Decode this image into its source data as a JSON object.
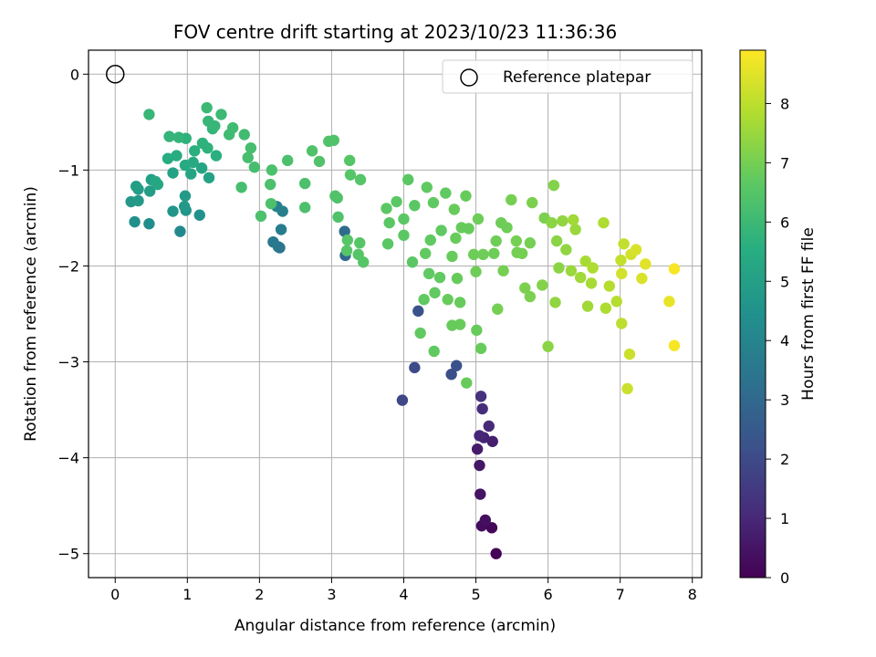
{
  "chart_data": {
    "type": "scatter",
    "title": "FOV centre drift starting at 2023/10/23 11:36:36",
    "xlabel": "Angular distance from reference (arcmin)",
    "ylabel": "Rotation from reference (arcmin)",
    "xlim": [
      -0.37,
      8.13
    ],
    "ylim": [
      -5.25,
      0.25
    ],
    "xticks": [
      0,
      1,
      2,
      3,
      4,
      5,
      6,
      7,
      8
    ],
    "yticks": [
      0,
      -1,
      -2,
      -3,
      -4,
      -5
    ],
    "xtick_labels": [
      "0",
      "1",
      "2",
      "3",
      "4",
      "5",
      "6",
      "7",
      "8"
    ],
    "ytick_labels": [
      "0",
      "−1",
      "−2",
      "−3",
      "−4",
      "−5"
    ],
    "grid": true,
    "legend": {
      "position": "top-right",
      "label": "Reference platepar"
    },
    "reference_point": {
      "x": 0,
      "y": 0
    },
    "colorbar": {
      "label": "Hours from first FF file",
      "colormap": "viridis",
      "range": [
        0,
        8.9
      ],
      "ticks": [
        0,
        1,
        2,
        3,
        4,
        5,
        6,
        7,
        8
      ],
      "tick_labels": [
        "0",
        "1",
        "2",
        "3",
        "4",
        "5",
        "6",
        "7",
        "8"
      ]
    },
    "points": [
      [
        5.28,
        -5.0,
        0.05
      ],
      [
        5.22,
        -4.73,
        0.15
      ],
      [
        5.08,
        -4.71,
        0.25
      ],
      [
        5.13,
        -4.65,
        0.35
      ],
      [
        5.06,
        -4.38,
        0.45
      ],
      [
        5.05,
        -4.08,
        0.55
      ],
      [
        5.02,
        -3.91,
        0.65
      ],
      [
        5.23,
        -3.83,
        0.75
      ],
      [
        5.11,
        -3.79,
        0.85
      ],
      [
        5.05,
        -3.77,
        0.95
      ],
      [
        5.18,
        -3.67,
        1.05
      ],
      [
        5.09,
        -3.49,
        1.15
      ],
      [
        5.07,
        -3.36,
        1.25
      ],
      [
        3.98,
        -3.4,
        1.9
      ],
      [
        4.15,
        -3.06,
        2.0
      ],
      [
        4.66,
        -3.13,
        2.1
      ],
      [
        4.73,
        -3.04,
        2.2
      ],
      [
        4.2,
        -2.47,
        2.3
      ],
      [
        3.19,
        -1.89,
        3.0
      ],
      [
        3.18,
        -1.64,
        3.1
      ],
      [
        2.28,
        -1.81,
        3.4
      ],
      [
        2.26,
        -1.8,
        3.5
      ],
      [
        2.19,
        -1.75,
        3.6
      ],
      [
        2.3,
        -1.62,
        3.7
      ],
      [
        2.32,
        -1.43,
        3.8
      ],
      [
        2.24,
        -1.38,
        3.9
      ],
      [
        0.9,
        -1.64,
        4.2
      ],
      [
        0.47,
        -1.56,
        4.3
      ],
      [
        0.27,
        -1.54,
        4.4
      ],
      [
        1.17,
        -1.47,
        4.5
      ],
      [
        0.8,
        -1.43,
        4.6
      ],
      [
        0.98,
        -1.42,
        4.6
      ],
      [
        0.96,
        -1.38,
        4.7
      ],
      [
        0.22,
        -1.33,
        4.7
      ],
      [
        0.32,
        -1.32,
        4.8
      ],
      [
        0.97,
        -1.27,
        4.8
      ],
      [
        0.32,
        -1.2,
        4.9
      ],
      [
        0.48,
        -1.22,
        4.9
      ],
      [
        0.29,
        -1.17,
        5.0
      ],
      [
        0.5,
        -1.1,
        5.0
      ],
      [
        1.3,
        -1.08,
        5.1
      ],
      [
        0.8,
        -1.03,
        5.1
      ],
      [
        1.05,
        -1.04,
        5.2
      ],
      [
        1.2,
        -0.98,
        5.2
      ],
      [
        0.56,
        -1.12,
        5.3
      ],
      [
        0.59,
        -1.15,
        5.3
      ],
      [
        0.97,
        -0.95,
        5.4
      ],
      [
        1.08,
        -0.92,
        5.4
      ],
      [
        0.73,
        -0.88,
        5.5
      ],
      [
        0.85,
        -0.85,
        5.5
      ],
      [
        1.4,
        -0.85,
        5.6
      ],
      [
        1.1,
        -0.8,
        5.6
      ],
      [
        1.28,
        -0.77,
        5.7
      ],
      [
        1.21,
        -0.72,
        5.7
      ],
      [
        0.98,
        -0.67,
        5.7
      ],
      [
        0.88,
        -0.66,
        5.8
      ],
      [
        0.75,
        -0.65,
        5.8
      ],
      [
        1.35,
        -0.57,
        5.8
      ],
      [
        0.47,
        -0.42,
        5.9
      ],
      [
        1.29,
        -0.49,
        5.9
      ],
      [
        1.38,
        -0.54,
        5.9
      ],
      [
        1.27,
        -0.35,
        6.0
      ],
      [
        1.47,
        -0.42,
        6.0
      ],
      [
        1.58,
        -0.63,
        6.1
      ],
      [
        1.63,
        -0.56,
        6.1
      ],
      [
        1.79,
        -0.63,
        6.1
      ],
      [
        1.88,
        -0.77,
        6.2
      ],
      [
        1.84,
        -0.87,
        6.2
      ],
      [
        1.93,
        -0.97,
        6.2
      ],
      [
        1.75,
        -1.18,
        6.2
      ],
      [
        2.17,
        -1.0,
        6.3
      ],
      [
        2.39,
        -0.9,
        6.3
      ],
      [
        2.15,
        -1.15,
        6.3
      ],
      [
        2.16,
        -1.35,
        6.3
      ],
      [
        2.02,
        -1.48,
        6.3
      ],
      [
        2.63,
        -1.14,
        6.3
      ],
      [
        2.63,
        -1.39,
        6.3
      ],
      [
        2.73,
        -0.8,
        6.4
      ],
      [
        2.83,
        -0.91,
        6.4
      ],
      [
        2.96,
        -0.7,
        6.4
      ],
      [
        3.03,
        -0.69,
        6.4
      ],
      [
        3.05,
        -1.27,
        6.4
      ],
      [
        3.08,
        -1.29,
        6.4
      ],
      [
        3.09,
        -1.49,
        6.4
      ],
      [
        3.25,
        -0.9,
        6.5
      ],
      [
        3.26,
        -1.05,
        6.5
      ],
      [
        3.4,
        -1.1,
        6.5
      ],
      [
        3.22,
        -1.73,
        6.5
      ],
      [
        3.21,
        -1.84,
        6.5
      ],
      [
        3.39,
        -1.76,
        6.5
      ],
      [
        3.44,
        -1.96,
        6.5
      ],
      [
        3.37,
        -1.88,
        6.5
      ],
      [
        3.76,
        -1.4,
        6.6
      ],
      [
        3.8,
        -1.55,
        6.6
      ],
      [
        3.9,
        -1.33,
        6.6
      ],
      [
        4.0,
        -1.51,
        6.6
      ],
      [
        4.06,
        -1.1,
        6.6
      ],
      [
        4.15,
        -1.37,
        6.6
      ],
      [
        4.0,
        -1.68,
        6.6
      ],
      [
        4.12,
        -1.96,
        6.6
      ],
      [
        3.78,
        -1.77,
        6.6
      ],
      [
        4.32,
        -1.18,
        6.7
      ],
      [
        4.41,
        -1.34,
        6.7
      ],
      [
        4.58,
        -1.24,
        6.7
      ],
      [
        4.52,
        -1.63,
        6.7
      ],
      [
        4.37,
        -1.73,
        6.7
      ],
      [
        4.3,
        -1.87,
        6.7
      ],
      [
        4.35,
        -2.08,
        6.7
      ],
      [
        4.43,
        -2.28,
        6.7
      ],
      [
        4.5,
        -2.12,
        6.7
      ],
      [
        4.28,
        -2.35,
        6.7
      ],
      [
        4.23,
        -2.7,
        6.7
      ],
      [
        4.42,
        -2.89,
        6.7
      ],
      [
        4.7,
        -1.41,
        6.8
      ],
      [
        4.72,
        -1.71,
        6.8
      ],
      [
        4.8,
        -1.6,
        6.8
      ],
      [
        4.86,
        -1.27,
        6.8
      ],
      [
        4.9,
        -1.61,
        6.8
      ],
      [
        4.67,
        -1.9,
        6.8
      ],
      [
        4.74,
        -2.13,
        6.8
      ],
      [
        4.61,
        -2.35,
        6.8
      ],
      [
        4.78,
        -2.38,
        6.8
      ],
      [
        4.67,
        -2.62,
        6.8
      ],
      [
        4.78,
        -2.61,
        6.8
      ],
      [
        4.87,
        -3.22,
        6.8
      ],
      [
        5.01,
        -2.67,
        6.8
      ],
      [
        5.07,
        -2.86,
        6.8
      ],
      [
        4.97,
        -1.88,
        6.9
      ],
      [
        5.0,
        -2.06,
        6.9
      ],
      [
        5.03,
        -1.51,
        6.9
      ],
      [
        5.1,
        -1.88,
        6.9
      ],
      [
        5.25,
        -1.87,
        6.9
      ],
      [
        5.35,
        -1.55,
        6.9
      ],
      [
        5.28,
        -1.74,
        6.9
      ],
      [
        5.43,
        -1.6,
        6.9
      ],
      [
        5.57,
        -1.86,
        7.0
      ],
      [
        5.38,
        -2.05,
        7.0
      ],
      [
        5.3,
        -2.45,
        7.0
      ],
      [
        5.49,
        -1.31,
        7.0
      ],
      [
        5.56,
        -1.74,
        7.0
      ],
      [
        5.64,
        -1.87,
        7.0
      ],
      [
        5.75,
        -1.76,
        7.0
      ],
      [
        5.78,
        -1.34,
        7.1
      ],
      [
        5.68,
        -2.23,
        7.1
      ],
      [
        5.75,
        -2.32,
        7.1
      ],
      [
        5.95,
        -1.5,
        7.1
      ],
      [
        6.08,
        -1.16,
        7.2
      ],
      [
        5.92,
        -2.2,
        7.2
      ],
      [
        6.0,
        -2.84,
        7.3
      ],
      [
        6.05,
        -1.55,
        7.3
      ],
      [
        6.12,
        -1.74,
        7.3
      ],
      [
        6.15,
        -2.02,
        7.3
      ],
      [
        6.1,
        -2.38,
        7.4
      ],
      [
        6.2,
        -1.53,
        7.4
      ],
      [
        6.25,
        -1.83,
        7.4
      ],
      [
        6.32,
        -2.05,
        7.5
      ],
      [
        6.38,
        -1.62,
        7.5
      ],
      [
        6.35,
        -1.52,
        7.6
      ],
      [
        6.45,
        -2.12,
        7.6
      ],
      [
        6.55,
        -2.42,
        7.6
      ],
      [
        6.52,
        -1.95,
        7.7
      ],
      [
        6.6,
        -2.18,
        7.7
      ],
      [
        6.62,
        -2.02,
        7.8
      ],
      [
        6.77,
        -1.55,
        7.8
      ],
      [
        6.8,
        -2.44,
        7.8
      ],
      [
        6.85,
        -2.21,
        7.9
      ],
      [
        6.95,
        -2.37,
        7.9
      ],
      [
        7.02,
        -2.6,
        8.0
      ],
      [
        7.01,
        -1.94,
        8.1
      ],
      [
        7.05,
        -1.77,
        8.1
      ],
      [
        7.1,
        -3.28,
        8.2
      ],
      [
        7.13,
        -2.92,
        8.2
      ],
      [
        7.02,
        -2.08,
        8.3
      ],
      [
        7.15,
        -1.88,
        8.3
      ],
      [
        7.22,
        -1.83,
        8.4
      ],
      [
        7.3,
        -2.13,
        8.4
      ],
      [
        7.35,
        -1.98,
        8.5
      ],
      [
        7.68,
        -2.37,
        8.6
      ],
      [
        7.75,
        -2.03,
        8.8
      ],
      [
        7.75,
        -2.83,
        8.8
      ]
    ]
  }
}
